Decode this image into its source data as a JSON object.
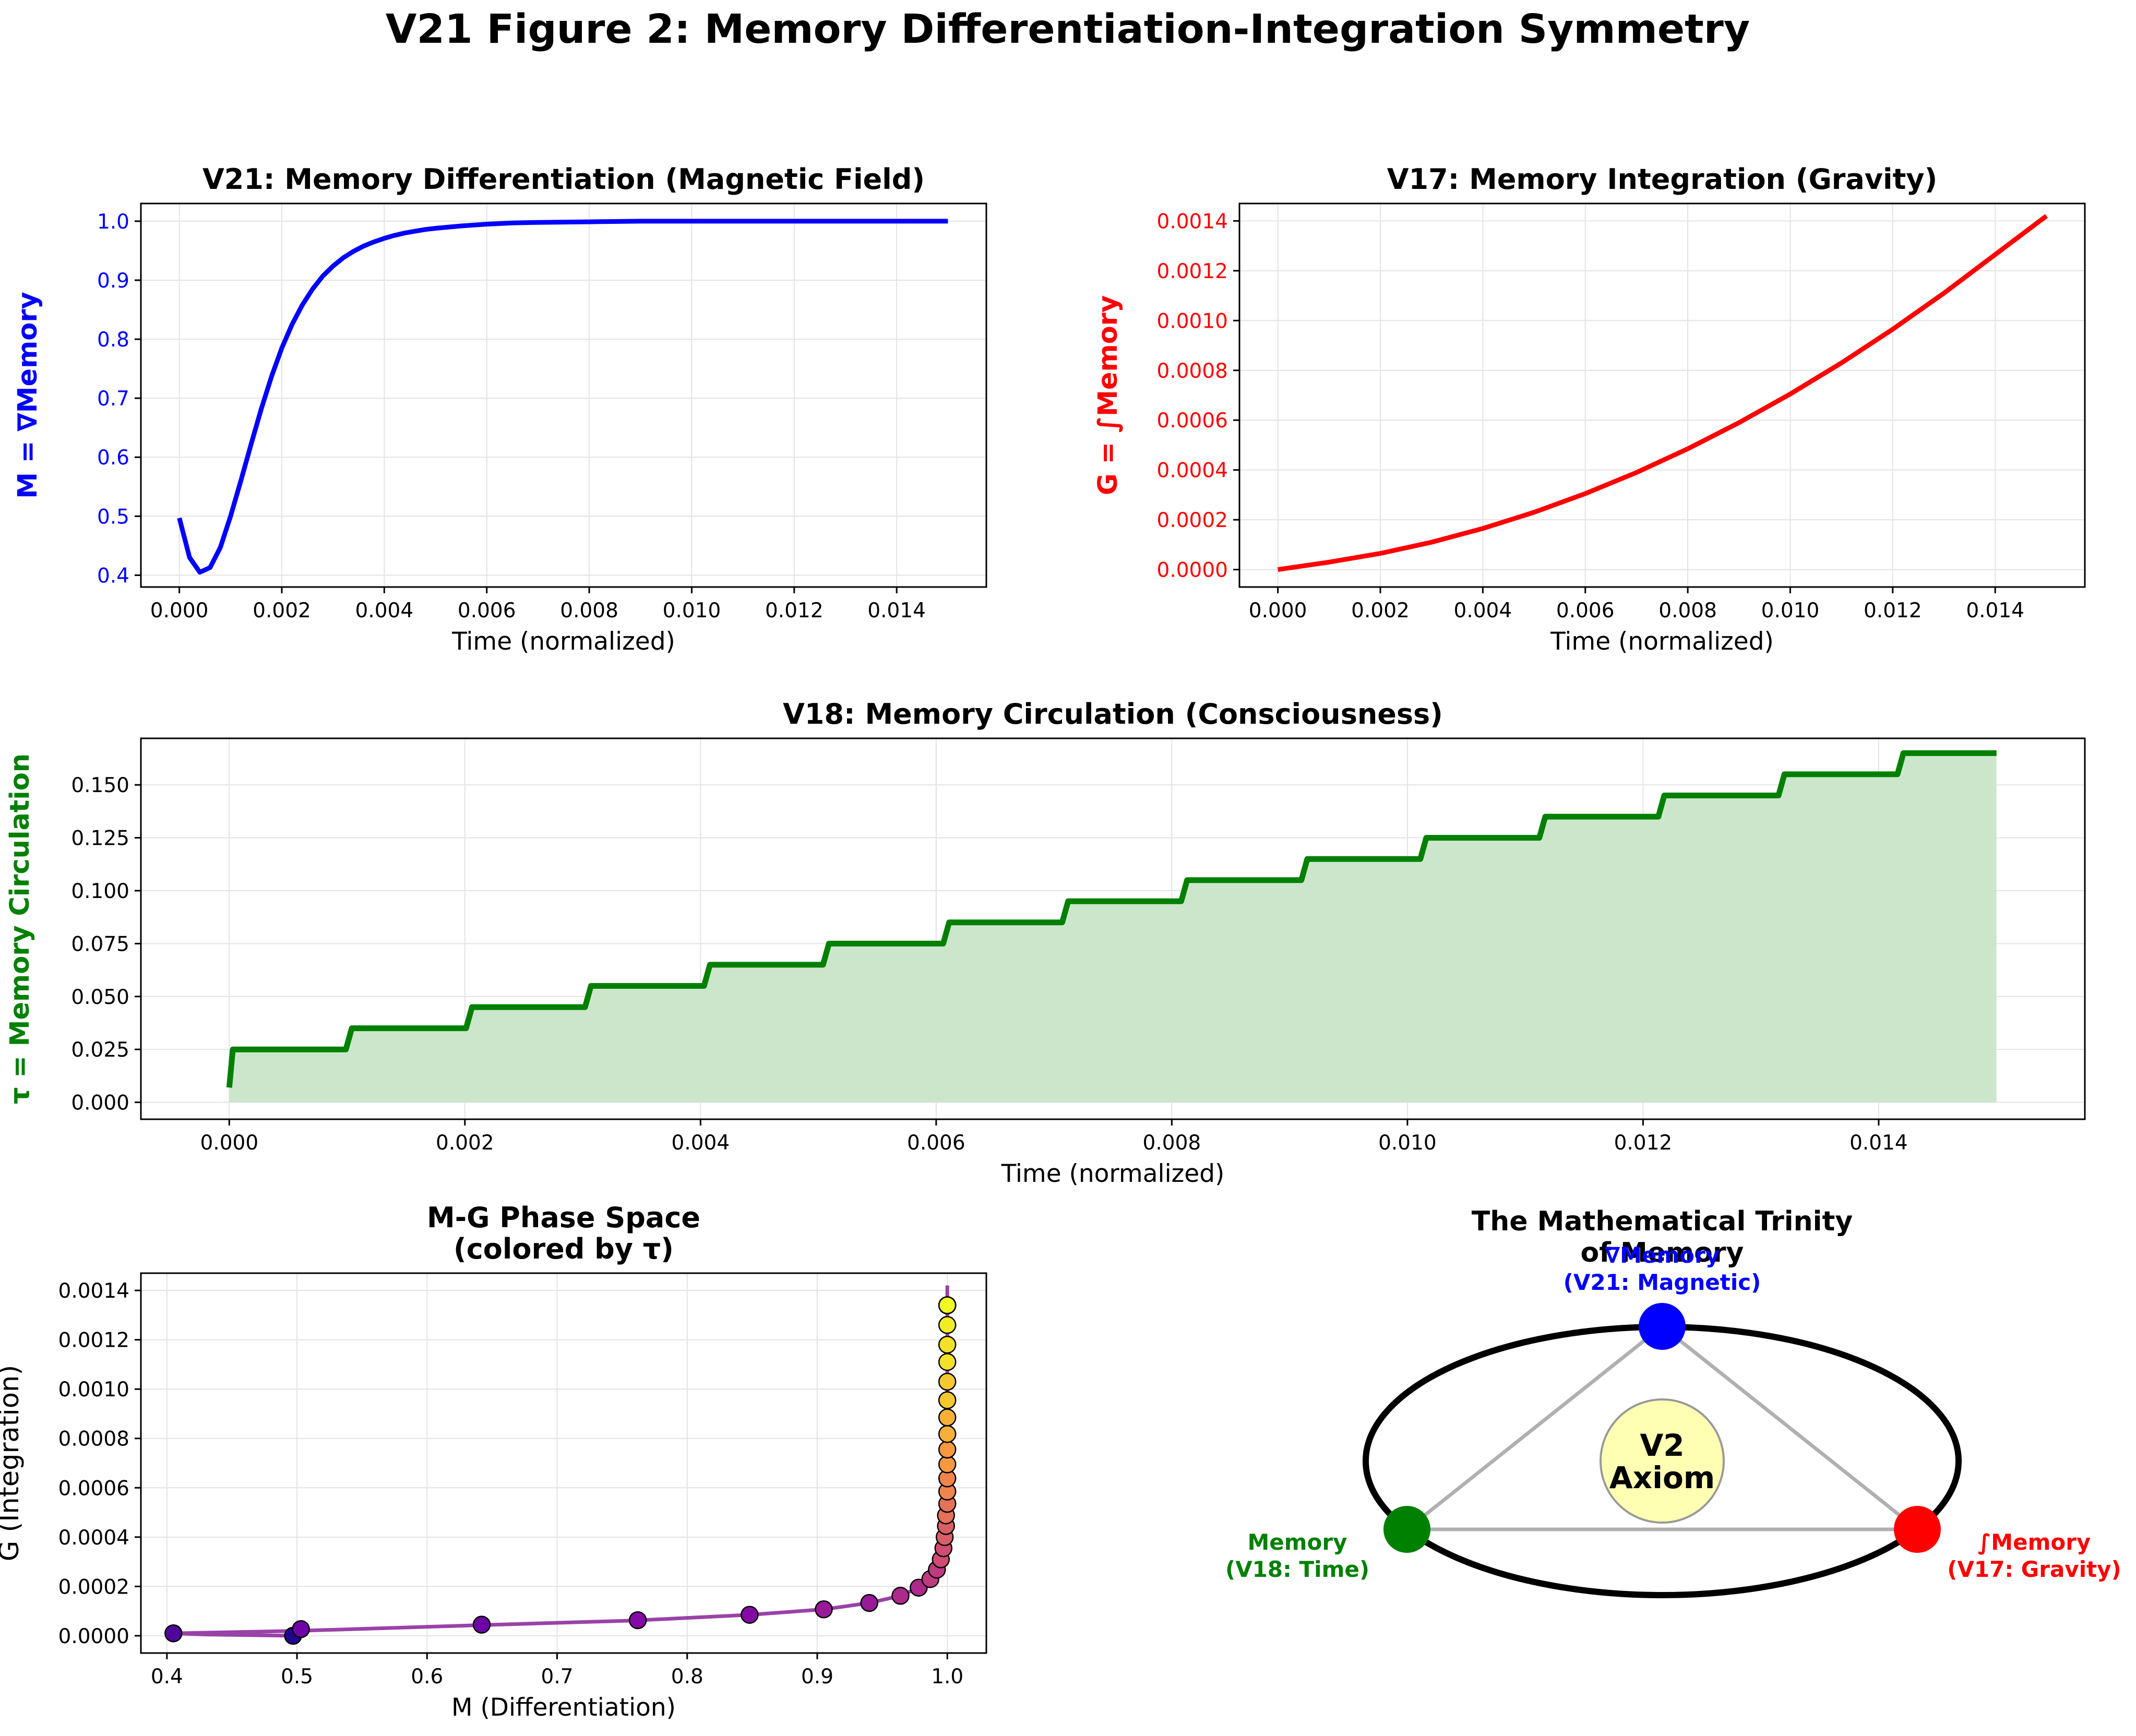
{
  "figure_title": "V21 Figure 2: Memory Differentiation-Integration Symmetry",
  "colors": {
    "magnetic": "#0000ff",
    "gravity": "#ff0000",
    "time": "#008000",
    "phase_line": "#8e2d9e",
    "fill": "#cce6cc",
    "grid": "#e3e3e3",
    "axiom_fill": "#ffffb3",
    "triangle": "#b0b0b0"
  },
  "chart_data": [
    {
      "id": "memory-differentiation",
      "type": "line",
      "title": "V21: Memory Differentiation (Magnetic Field)",
      "xlabel": "Time (normalized)",
      "ylabel": "M = ∇Memory",
      "xlim": [
        -0.00075,
        0.01575
      ],
      "ylim": [
        0.38,
        1.03
      ],
      "xticks": [
        0.0,
        0.002,
        0.004,
        0.006,
        0.008,
        0.01,
        0.012,
        0.014
      ],
      "xtick_labels": [
        "0.000",
        "0.002",
        "0.004",
        "0.006",
        "0.008",
        "0.010",
        "0.012",
        "0.014"
      ],
      "yticks": [
        0.4,
        0.5,
        0.6,
        0.7,
        0.8,
        0.9,
        1.0
      ],
      "ytick_labels": [
        "0.4",
        "0.5",
        "0.6",
        "0.7",
        "0.8",
        "0.9",
        "1.0"
      ],
      "grid": true,
      "series": [
        {
          "name": "M",
          "color": "#0000ff",
          "x": [
            0.0,
            0.0002,
            0.0004,
            0.0006,
            0.0008,
            0.001,
            0.0012,
            0.0014,
            0.0016,
            0.0018,
            0.002,
            0.0022,
            0.0024,
            0.0026,
            0.0028,
            0.003,
            0.0032,
            0.0034,
            0.0036,
            0.0038,
            0.004,
            0.0042,
            0.0044,
            0.0046,
            0.0048,
            0.005,
            0.0055,
            0.006,
            0.0065,
            0.007,
            0.008,
            0.009,
            0.01,
            0.011,
            0.012,
            0.013,
            0.014,
            0.015
          ],
          "y": [
            0.497,
            0.43,
            0.405,
            0.413,
            0.447,
            0.5,
            0.56,
            0.622,
            0.682,
            0.737,
            0.785,
            0.825,
            0.858,
            0.885,
            0.907,
            0.924,
            0.938,
            0.949,
            0.958,
            0.965,
            0.971,
            0.976,
            0.98,
            0.983,
            0.986,
            0.988,
            0.992,
            0.995,
            0.997,
            0.998,
            0.999,
            1.0,
            1.0,
            1.0,
            1.0,
            1.0,
            1.0,
            1.0
          ]
        }
      ]
    },
    {
      "id": "memory-integration",
      "type": "line",
      "title": "V17: Memory Integration (Gravity)",
      "xlabel": "Time (normalized)",
      "ylabel": "G = ∫Memory",
      "xlim": [
        -0.00075,
        0.01575
      ],
      "ylim": [
        -7e-05,
        0.00147
      ],
      "xticks": [
        0.0,
        0.002,
        0.004,
        0.006,
        0.008,
        0.01,
        0.012,
        0.014
      ],
      "xtick_labels": [
        "0.000",
        "0.002",
        "0.004",
        "0.006",
        "0.008",
        "0.010",
        "0.012",
        "0.014"
      ],
      "yticks": [
        0.0,
        0.0002,
        0.0004,
        0.0006,
        0.0008,
        0.001,
        0.0012,
        0.0014
      ],
      "ytick_labels": [
        "0.0000",
        "0.0002",
        "0.0004",
        "0.0006",
        "0.0008",
        "0.0010",
        "0.0012",
        "0.0014"
      ],
      "grid": true,
      "series": [
        {
          "name": "G",
          "color": "#ff0000",
          "x": [
            0.0,
            0.001,
            0.002,
            0.003,
            0.004,
            0.005,
            0.006,
            0.007,
            0.008,
            0.009,
            0.01,
            0.011,
            0.012,
            0.013,
            0.014,
            0.015
          ],
          "y": [
            0.0,
            3e-05,
            6.5e-05,
            0.00011,
            0.000165,
            0.00023,
            0.000305,
            0.00039,
            0.000485,
            0.00059,
            0.000705,
            0.00083,
            0.000965,
            0.00111,
            0.001265,
            0.00142
          ]
        }
      ]
    },
    {
      "id": "memory-circulation",
      "type": "area",
      "title": "V18: Memory Circulation (Consciousness)",
      "xlabel": "Time (normalized)",
      "ylabel": "τ = Memory Circulation",
      "xlim": [
        -0.00075,
        0.01575
      ],
      "ylim": [
        -0.008,
        0.172
      ],
      "xticks": [
        0.0,
        0.002,
        0.004,
        0.006,
        0.008,
        0.01,
        0.012,
        0.014
      ],
      "xtick_labels": [
        "0.000",
        "0.002",
        "0.004",
        "0.006",
        "0.008",
        "0.010",
        "0.012",
        "0.014"
      ],
      "yticks": [
        0.0,
        0.025,
        0.05,
        0.075,
        0.1,
        0.125,
        0.15
      ],
      "ytick_labels": [
        "0.000",
        "0.025",
        "0.050",
        "0.075",
        "0.100",
        "0.125",
        "0.150"
      ],
      "grid": true,
      "series": [
        {
          "name": "τ",
          "color": "#008000",
          "start_value": 0.007,
          "step_times": [
            0.0,
            0.00101,
            0.00203,
            0.00304,
            0.00405,
            0.00506,
            0.00608,
            0.00709,
            0.0081,
            0.00912,
            0.01013,
            0.01114,
            0.01215,
            0.01317,
            0.01418
          ],
          "step_values": [
            0.025,
            0.035,
            0.045,
            0.055,
            0.065,
            0.075,
            0.085,
            0.095,
            0.105,
            0.115,
            0.125,
            0.135,
            0.145,
            0.155,
            0.165
          ],
          "x_end": 0.015
        }
      ]
    },
    {
      "id": "phase-space",
      "type": "scatter",
      "title": "M-G Phase Space\n(colored by τ)",
      "xlabel": "M (Differentiation)",
      "ylabel": "G (Integration)",
      "xlim": [
        0.38,
        1.03
      ],
      "ylim": [
        -7e-05,
        0.00147
      ],
      "xticks": [
        0.4,
        0.5,
        0.6,
        0.7,
        0.8,
        0.9,
        1.0
      ],
      "xtick_labels": [
        "0.4",
        "0.5",
        "0.6",
        "0.7",
        "0.8",
        "0.9",
        "1.0"
      ],
      "yticks": [
        0.0,
        0.0002,
        0.0004,
        0.0006,
        0.0008,
        0.001,
        0.0012,
        0.0014
      ],
      "ytick_labels": [
        "0.0000",
        "0.0002",
        "0.0004",
        "0.0006",
        "0.0008",
        "0.0010",
        "0.0012",
        "0.0014"
      ],
      "grid": true,
      "series": [
        {
          "name": "trajectory",
          "color": "#8e2d9e",
          "x": [
            0.497,
            0.43,
            0.405,
            0.5,
            0.64,
            0.76,
            0.848,
            0.905,
            0.94,
            0.964,
            0.978,
            0.987,
            0.993,
            0.996,
            0.998,
            0.999,
            1.0,
            1.0,
            1.0
          ],
          "y": [
            0.0,
            5e-06,
            1e-05,
            2e-05,
            4.3e-05,
            6.2e-05,
            8.5e-05,
            0.000107,
            0.000133,
            0.000162,
            0.000195,
            0.00023,
            0.000275,
            0.00033,
            0.00039,
            0.00046,
            0.00055,
            0.0009,
            0.00142
          ]
        },
        {
          "name": "sampled points",
          "x": [
            0.497,
            0.405,
            0.503,
            0.642,
            0.762,
            0.848,
            0.905,
            0.94,
            0.964,
            0.978,
            0.987,
            0.992,
            0.995,
            0.997,
            0.998,
            0.999,
            0.999,
            1.0,
            1.0,
            1.0,
            1.0,
            1.0,
            1.0,
            1.0,
            1.0,
            1.0,
            1.0,
            1.0,
            1.0,
            1.0,
            1.0,
            1.0,
            1.0
          ],
          "y": [
            0.0,
            1e-05,
            2.7e-05,
            4.5e-05,
            6.3e-05,
            8.5e-05,
            0.000107,
            0.000133,
            0.000162,
            0.000195,
            0.00023,
            0.000268,
            0.00031,
            0.000355,
            0.0004,
            0.000445,
            0.000488,
            0.000535,
            0.000585,
            0.000638,
            0.000695,
            0.000755,
            0.000818,
            0.000885,
            0.000955,
            0.00103,
            0.00111,
            0.00118,
            0.00126,
            0.00134,
            0.00134,
            0.00134,
            0.00134
          ],
          "tau": [
            0.007,
            0.025,
            0.035,
            0.035,
            0.045,
            0.045,
            0.055,
            0.055,
            0.065,
            0.065,
            0.075,
            0.075,
            0.085,
            0.085,
            0.095,
            0.095,
            0.105,
            0.105,
            0.115,
            0.115,
            0.125,
            0.125,
            0.135,
            0.135,
            0.145,
            0.145,
            0.155,
            0.155,
            0.16,
            0.165,
            0.165,
            0.165,
            0.165
          ]
        }
      ]
    }
  ],
  "trinity": {
    "title": "The Mathematical Trinity\nof Memory",
    "center_label": "V2\nAxiom",
    "top_label": "∇Memory\n(V21: Magnetic)",
    "left_label": "Memory\n(V18: Time)",
    "right_label": "∫Memory\n(V17: Gravity)"
  }
}
